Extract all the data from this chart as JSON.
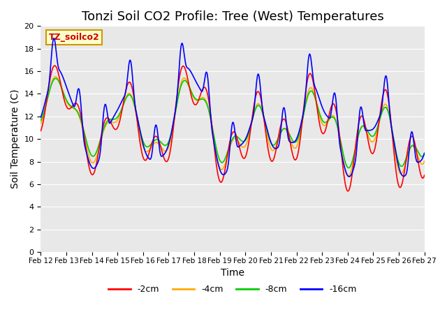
{
  "title": "Tonzi Soil CO2 Profile: Tree (West) Temperatures",
  "xlabel": "Time",
  "ylabel": "Soil Temperature (C)",
  "ylim": [
    0,
    20
  ],
  "yticks": [
    0,
    2,
    4,
    6,
    8,
    10,
    12,
    14,
    16,
    18,
    20
  ],
  "x_labels": [
    "Feb 12",
    "Feb 13",
    "Feb 14",
    "Feb 15",
    "Feb 16",
    "Feb 17",
    "Feb 18",
    "Feb 19",
    "Feb 20",
    "Feb 21",
    "Feb 22",
    "Feb 23",
    "Feb 24",
    "Feb 25",
    "Feb 26",
    "Feb 27"
  ],
  "bg_color": "#e8e8e8",
  "fig_color": "#ffffff",
  "legend_label": "TZ_soilco2",
  "legend_box_color": "#ffffcc",
  "legend_box_edge": "#cc9900",
  "series_colors": [
    "#ff0000",
    "#ffaa00",
    "#00cc00",
    "#0000ff"
  ],
  "series_labels": [
    "-2cm",
    "-4cm",
    "-8cm",
    "-16cm"
  ],
  "title_fontsize": 13,
  "axis_label_fontsize": 10
}
